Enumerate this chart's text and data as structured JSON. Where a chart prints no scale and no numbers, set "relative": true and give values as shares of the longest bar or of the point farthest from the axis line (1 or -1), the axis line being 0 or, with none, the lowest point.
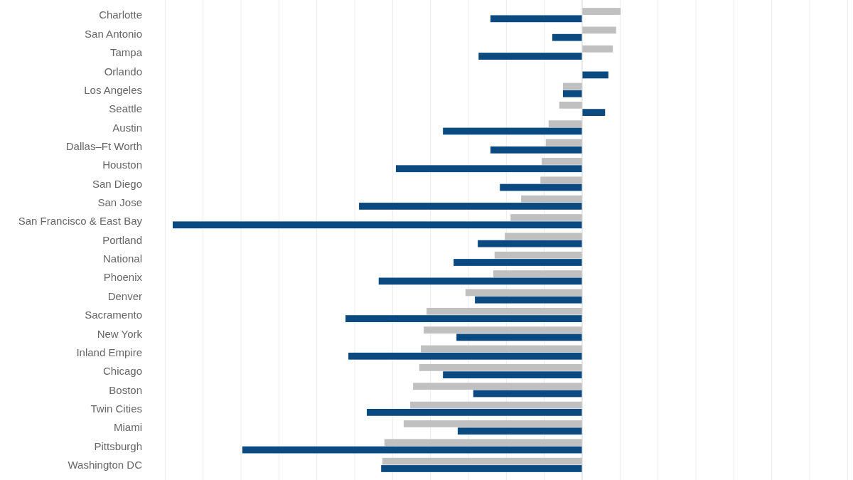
{
  "chart_data": {
    "type": "bar",
    "orientation": "horizontal",
    "relative": true,
    "grid": "x",
    "categories": [
      "Charlotte",
      "San Antonio",
      "Tampa",
      "Orlando",
      "Los Angeles",
      "Seattle",
      "Austin",
      "Dallas–Ft Worth",
      "Houston",
      "San Diego",
      "San Jose",
      "San Francisco & East Bay",
      "Portland",
      "National",
      "Phoenix",
      "Denver",
      "Sacramento",
      "New York",
      "Inland Empire",
      "Chicago",
      "Boston",
      "Twin Cities",
      "Miami",
      "Pittsburgh",
      "Washington DC"
    ],
    "series": [
      {
        "color": "#c0c0c0",
        "values": [
          0.094,
          0.083,
          0.075,
          0,
          -0.047,
          -0.056,
          -0.082,
          -0.089,
          -0.099,
          -0.102,
          -0.149,
          -0.175,
          -0.189,
          -0.214,
          -0.217,
          -0.285,
          -0.38,
          -0.387,
          -0.394,
          -0.398,
          -0.413,
          -0.42,
          -0.436,
          -0.483,
          -0.488
        ]
      },
      {
        "color": "#0b4a80",
        "values": [
          -0.224,
          -0.073,
          -0.253,
          0.064,
          -0.047,
          0.056,
          -0.34,
          -0.224,
          -0.455,
          -0.201,
          -0.545,
          -1,
          -0.255,
          -0.314,
          -0.497,
          -0.262,
          -0.578,
          -0.307,
          -0.571,
          -0.34,
          -0.266,
          -0.526,
          -0.304,
          -0.83,
          -0.491
        ]
      }
    ]
  }
}
